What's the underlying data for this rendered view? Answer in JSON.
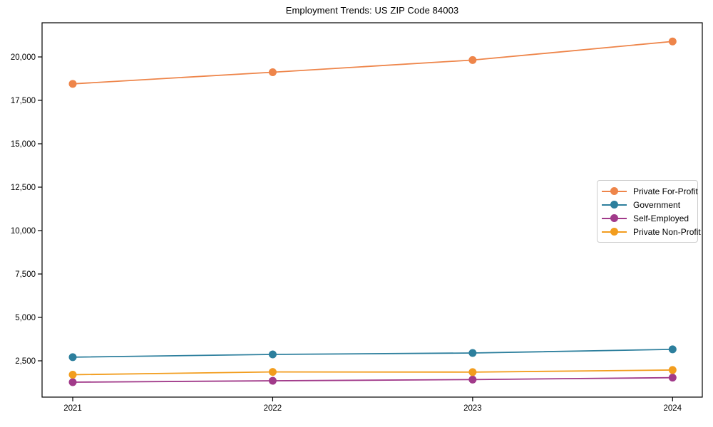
{
  "figure": {
    "title": "Employment Trends: US ZIP Code 84003"
  },
  "chart_data": {
    "type": "line",
    "title": "Employment Trends: US ZIP Code 84003",
    "categories": [
      "2021",
      "2022",
      "2023",
      "2024"
    ],
    "series": [
      {
        "name": "Private For-Profit",
        "color": "#ee854a",
        "values": [
          18450,
          19120,
          19820,
          20890
        ]
      },
      {
        "name": "Government",
        "color": "#2d7f9d",
        "values": [
          2710,
          2870,
          2950,
          3160
        ]
      },
      {
        "name": "Self-Employed",
        "color": "#a13a8a",
        "values": [
          1270,
          1350,
          1420,
          1530
        ]
      },
      {
        "name": "Private Non-Profit",
        "color": "#f29d1e",
        "values": [
          1700,
          1860,
          1850,
          1970
        ]
      }
    ],
    "xlabel": "",
    "ylabel": "",
    "xtick_labels": [
      "2021",
      "2022",
      "2023",
      "2024"
    ],
    "yticks": [
      2500,
      5000,
      7500,
      10000,
      12500,
      15000,
      17500,
      20000
    ],
    "ytick_labels": [
      "2,500",
      "5,000",
      "7,500",
      "10,000",
      "12,500",
      "15,000",
      "17,500",
      "20,000"
    ],
    "ylim": [
      400,
      22000
    ],
    "grid": false,
    "marker": "circle",
    "legend": {
      "position": "center-right",
      "entries": [
        "Private For-Profit",
        "Government",
        "Self-Employed",
        "Private Non-Profit"
      ]
    }
  }
}
